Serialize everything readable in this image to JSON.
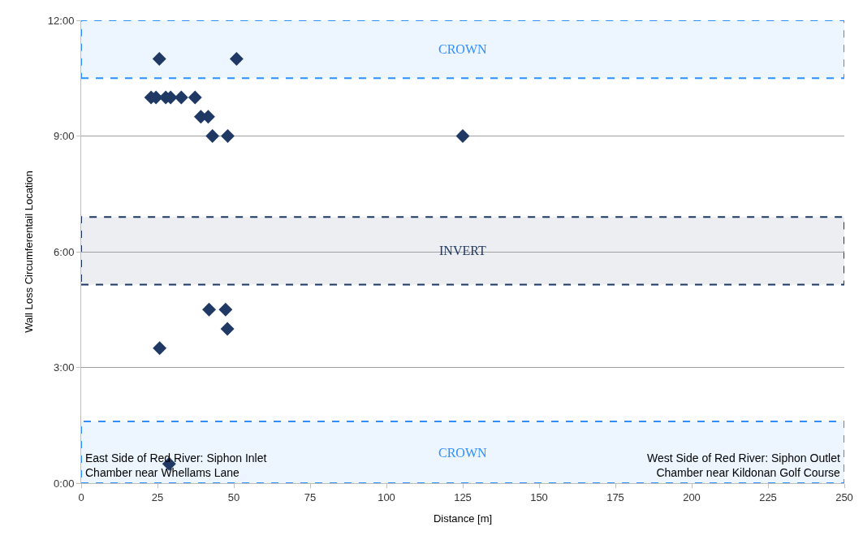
{
  "chart_data": {
    "type": "scatter",
    "xlabel": "Distance [m]",
    "ylabel": "Wall Loss Circumferentail Location",
    "x": [
      25.6,
      50.9,
      22.9,
      24.5,
      27.7,
      29.3,
      32.8,
      37.3,
      39.2,
      41.6,
      43,
      47.3,
      48,
      125,
      41.9,
      47.3,
      47.9,
      25.7,
      28.8
    ],
    "series": [
      {
        "color": "#1f3864",
        "values": [
          11,
          11,
          10,
          10,
          10,
          10,
          10,
          10,
          9.5,
          9.5,
          9,
          null,
          9,
          9,
          4.5,
          4.5,
          4,
          3.5,
          0.5
        ]
      }
    ],
    "marker": "diamond",
    "grid": "y",
    "xlim": [
      0,
      250
    ],
    "xticks": [
      0,
      25,
      50,
      75,
      100,
      125,
      150,
      175,
      200,
      225,
      250
    ],
    "ylim": [
      0,
      12
    ],
    "yticks": [
      {
        "value": 0,
        "label": "0:00"
      },
      {
        "value": 3,
        "label": "3:00"
      },
      {
        "value": 6,
        "label": "6:00"
      },
      {
        "value": 9,
        "label": "9:00"
      },
      {
        "value": 12,
        "label": "12:00"
      }
    ],
    "bands": [
      {
        "axis": "y",
        "from": 10.5,
        "to": 12,
        "label": "CROWN",
        "color": "#2e8fff"
      },
      {
        "axis": "y",
        "from": 5.15,
        "to": 6.9,
        "label": "INVERT",
        "color": "#1f3864"
      },
      {
        "axis": "y",
        "from": 0,
        "to": 1.6,
        "label": "CROWN",
        "color": "#2e8fff"
      }
    ],
    "annotations": [
      "East Side of Red River: Siphon Inlet\nChamber near Whellams Lane",
      "West Side of Red River: Siphon Outlet\nChamber near Kildonan Golf Course"
    ]
  }
}
